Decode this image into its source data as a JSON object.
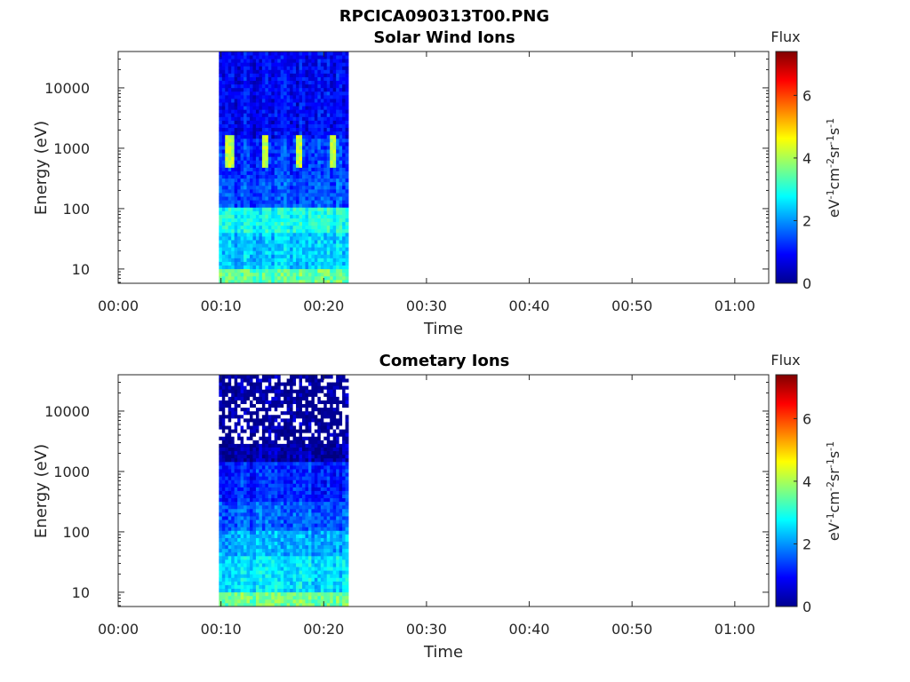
{
  "figure_title": "RPCICA090313T00.PNG",
  "chart_data": [
    {
      "type": "heatmap",
      "title": "Solar Wind Ions",
      "xlabel": "Time",
      "ylabel": "Energy (eV)",
      "x_ticks": [
        "00:00",
        "00:10",
        "00:20",
        "00:30",
        "00:40",
        "00:50",
        "01:00"
      ],
      "x_range_minutes": [
        0,
        63.3
      ],
      "y_scale": "log",
      "y_ticks": [
        "10",
        "100",
        "1000",
        "10000"
      ],
      "y_range": [
        5.8,
        40000
      ],
      "data_time_range_minutes": [
        9.8,
        22.4
      ],
      "colorbar": {
        "label": "Flux",
        "units": "eV-1cm-2sr-1s-1",
        "ticks": [
          "0",
          "2",
          "4",
          "6"
        ],
        "range": [
          0,
          7.4
        ],
        "colormap": "jet"
      },
      "profile": {
        "description_values": "log flux by energy band",
        "bands": [
          {
            "energy_max": 10,
            "flux": 3.5
          },
          {
            "energy_max": 40,
            "flux": 2.4
          },
          {
            "energy_max": 100,
            "flux": 2.9
          },
          {
            "energy_max": 300,
            "flux": 1.5
          },
          {
            "energy_max": 1500,
            "flux": 1.3
          },
          {
            "energy_max": 40000,
            "flux": 0.9
          }
        ],
        "peak_energy": 750,
        "peak_flux": 4.6,
        "peak_times": [
          10.9,
          14.3,
          17.6,
          20.8
        ]
      }
    },
    {
      "type": "heatmap",
      "title": "Cometary Ions",
      "xlabel": "Time",
      "ylabel": "Energy (eV)",
      "x_ticks": [
        "00:00",
        "00:10",
        "00:20",
        "00:30",
        "00:40",
        "00:50",
        "01:00"
      ],
      "x_range_minutes": [
        0,
        63.3
      ],
      "y_scale": "log",
      "y_ticks": [
        "10",
        "100",
        "1000",
        "10000"
      ],
      "y_range": [
        5.8,
        40000
      ],
      "data_time_range_minutes": [
        9.8,
        22.4
      ],
      "colorbar": {
        "label": "Flux",
        "units": "eV-1cm-2sr-1s-1",
        "ticks": [
          "0",
          "2",
          "4",
          "6"
        ],
        "range": [
          0,
          7.4
        ],
        "colormap": "jet"
      },
      "profile": {
        "bands": [
          {
            "energy_max": 10,
            "flux": 3.6
          },
          {
            "energy_max": 40,
            "flux": 2.6
          },
          {
            "energy_max": 100,
            "flux": 2.2
          },
          {
            "energy_max": 300,
            "flux": 1.6
          },
          {
            "energy_max": 1500,
            "flux": 1.2
          },
          {
            "energy_max": 40000,
            "flux": 0.3
          }
        ],
        "gaps_above_energy": 3000
      }
    }
  ]
}
